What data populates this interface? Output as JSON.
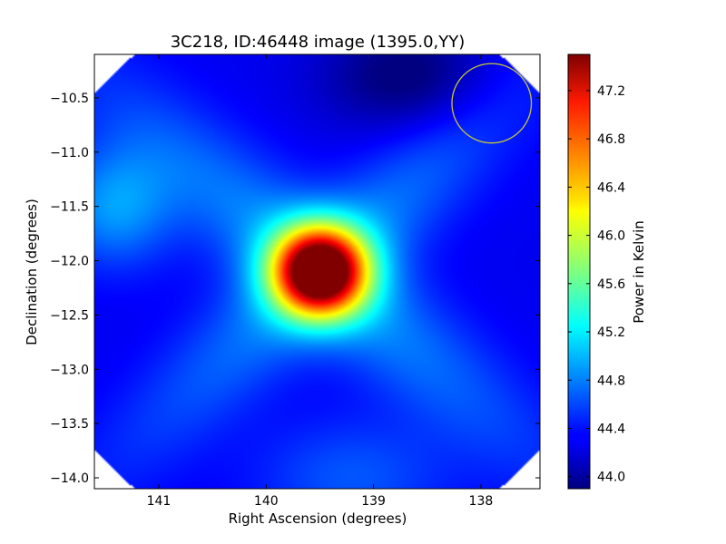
{
  "chart_data": {
    "type": "heatmap",
    "title": "3C218, ID:46448 image (1395.0,YY)",
    "xlabel": "Right Ascension (degrees)",
    "ylabel": "Declination (degrees)",
    "colorbar_label": "Power in Kelvin",
    "x_reversed": true,
    "xlim": [
      141.6,
      137.45
    ],
    "ylim": [
      -14.1,
      -10.1
    ],
    "x_ticks": [
      141,
      140,
      139,
      138
    ],
    "x_tick_labels": [
      "141",
      "140",
      "139",
      "138"
    ],
    "y_ticks": [
      -10.5,
      -11.0,
      -11.5,
      -12.0,
      -12.5,
      -13.0,
      -13.5,
      -14.0
    ],
    "y_tick_labels": [
      "−10.5",
      "−11.0",
      "−11.5",
      "−12.0",
      "−12.5",
      "−13.0",
      "−13.5",
      "−14.0"
    ],
    "colorbar_range": [
      43.9,
      47.5
    ],
    "colorbar_ticks": [
      44.0,
      44.4,
      44.8,
      45.2,
      45.6,
      46.0,
      46.4,
      46.8,
      47.2
    ],
    "colorbar_tick_labels": [
      "44.0",
      "44.4",
      "44.8",
      "45.2",
      "45.6",
      "46.0",
      "46.4",
      "46.8",
      "47.2"
    ],
    "colormap": "jet",
    "peak": {
      "ra": 139.5,
      "dec": -12.1,
      "value": 47.5
    },
    "background_level": 44.3,
    "corners_masked": true,
    "beam_circle": {
      "ra": 137.9,
      "dec": -10.55,
      "radius_deg": 0.37,
      "color": "#c8c832"
    },
    "grid": false,
    "legend": "none"
  }
}
